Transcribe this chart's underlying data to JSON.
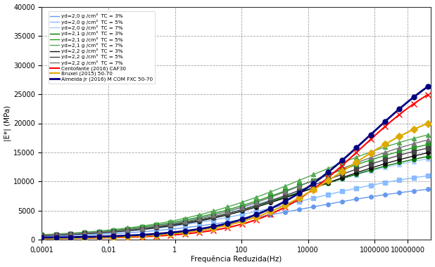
{
  "title": "",
  "xlabel": "Frequência Reduzida(Hz)",
  "ylabel": "|E*| (MPa)",
  "xlim": [
    0.0001,
    50000000
  ],
  "ylim": [
    0,
    40000
  ],
  "yticks": [
    0,
    5000,
    10000,
    15000,
    20000,
    25000,
    30000,
    35000,
    40000
  ],
  "xtick_labels": [
    "0,0001",
    "0,01",
    "1",
    "100",
    "10000",
    "1000000",
    "10000000"
  ],
  "xtick_values": [
    0.0001,
    0.01,
    1,
    100,
    10000,
    1000000,
    10000000
  ],
  "background_color": "#ffffff",
  "grid_major_color": "#888888",
  "grid_minor_color": "#bbbbbb",
  "series": [
    {
      "label": "yd=2,0 g /cm³  TC = 3%",
      "color": "#6699EE",
      "marker": "o",
      "markersize": 4,
      "linewidth": 1.0,
      "linestyle": "-"
    },
    {
      "label": "yd=2,0 g /cm³  TC = 5%",
      "color": "#88BBFF",
      "marker": "s",
      "markersize": 4,
      "linewidth": 1.0,
      "linestyle": "-"
    },
    {
      "label": "yd=2,0 g /cm³  TC = 7%",
      "color": "#AACCFF",
      "marker": "^",
      "markersize": 4,
      "linewidth": 1.0,
      "linestyle": "-"
    },
    {
      "label": "yd=2,1 g /cm³  TC = 3%",
      "color": "#007700",
      "marker": "o",
      "markersize": 4,
      "linewidth": 1.0,
      "linestyle": "-"
    },
    {
      "label": "yd=2,1 g /cm³  TC = 5%",
      "color": "#229922",
      "marker": "s",
      "markersize": 4,
      "linewidth": 1.0,
      "linestyle": "-"
    },
    {
      "label": "yd=2,1 g /cm³  TC = 7%",
      "color": "#55AA55",
      "marker": "^",
      "markersize": 4,
      "linewidth": 1.0,
      "linestyle": "-"
    },
    {
      "label": "yd=2,2 g /cm³  TC = 3%",
      "color": "#111111",
      "marker": "o",
      "markersize": 4,
      "linewidth": 1.0,
      "linestyle": "-"
    },
    {
      "label": "yd=2,2 g /cm³  TC = 5%",
      "color": "#444444",
      "marker": "s",
      "markersize": 4,
      "linewidth": 1.0,
      "linestyle": "-"
    },
    {
      "label": "yd=2,2 g /cm³  TC = 7%",
      "color": "#777777",
      "marker": "^",
      "markersize": 4,
      "linewidth": 1.0,
      "linestyle": "-"
    },
    {
      "label": "Centofante (2016) CAF30",
      "color": "#FF0000",
      "marker": "x",
      "markersize": 6,
      "linewidth": 1.5,
      "linestyle": "-"
    },
    {
      "label": "Bruxel (2015) 50-70",
      "color": "#DDAA00",
      "marker": "D",
      "markersize": 5,
      "linewidth": 1.5,
      "linestyle": "-"
    },
    {
      "label": "Almeida Jr (2016) M COM FXC 50-70",
      "color": "#000080",
      "marker": "o",
      "markersize": 5,
      "linewidth": 2.0,
      "linestyle": "-"
    }
  ],
  "series_params": [
    {
      "alpha": 10200,
      "beta": 1.6,
      "gamma": 0.42,
      "delta": 200
    },
    {
      "alpha": 13000,
      "beta": 1.6,
      "gamma": 0.42,
      "delta": 200
    },
    {
      "alpha": 16500,
      "beta": 1.6,
      "gamma": 0.42,
      "delta": 200
    },
    {
      "alpha": 17000,
      "beta": 1.8,
      "gamma": 0.44,
      "delta": 300
    },
    {
      "alpha": 19500,
      "beta": 1.8,
      "gamma": 0.44,
      "delta": 300
    },
    {
      "alpha": 21500,
      "beta": 1.8,
      "gamma": 0.44,
      "delta": 300
    },
    {
      "alpha": 17800,
      "beta": 2.0,
      "gamma": 0.46,
      "delta": 400
    },
    {
      "alpha": 18800,
      "beta": 2.0,
      "gamma": 0.46,
      "delta": 400
    },
    {
      "alpha": 20500,
      "beta": 2.0,
      "gamma": 0.46,
      "delta": 400
    },
    {
      "alpha": 31000,
      "beta": 3.8,
      "gamma": 0.68,
      "delta": 200
    },
    {
      "alpha": 24200,
      "beta": 3.2,
      "gamma": 0.62,
      "delta": 150
    },
    {
      "alpha": 35000,
      "beta": 3.5,
      "gamma": 0.6,
      "delta": 300
    }
  ]
}
